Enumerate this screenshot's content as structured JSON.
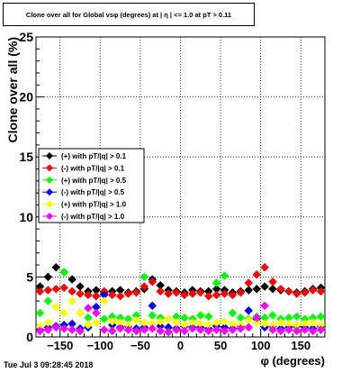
{
  "title": "Clone  over all for Global vsφ (degrees) at | η | <= 1.0 at pT > 0.11",
  "footer": "Tue Jul  3 09:28:45 2018",
  "chart_data": {
    "type": "scatter",
    "title": "Clone  over all for Global vsφ (degrees) at | η | <= 1.0 at pT > 0.11",
    "xlabel": "φ (degrees)",
    "ylabel": "Clone  over all (%)",
    "xlim": [
      -180,
      180
    ],
    "ylim": [
      0,
      25
    ],
    "xticks": [
      -150,
      -100,
      -50,
      0,
      50,
      100,
      150
    ],
    "yticks": [
      0,
      5,
      10,
      15,
      20,
      25
    ],
    "grid": true,
    "legend_position": "middle-left",
    "x": [
      -175,
      -165,
      -155,
      -145,
      -135,
      -125,
      -115,
      -105,
      -95,
      -85,
      -75,
      -65,
      -55,
      -45,
      -35,
      -25,
      -15,
      -5,
      5,
      15,
      25,
      35,
      45,
      55,
      65,
      75,
      85,
      95,
      105,
      115,
      125,
      135,
      145,
      155,
      165,
      175
    ],
    "series": [
      {
        "name": "(+) with pT/|q| > 0.1",
        "color": "#000000",
        "values": [
          4.2,
          5.0,
          5.8,
          5.4,
          4.8,
          4.2,
          3.8,
          3.9,
          3.7,
          3.8,
          3.9,
          3.7,
          3.8,
          4.0,
          4.8,
          4.3,
          3.9,
          3.8,
          3.7,
          3.9,
          3.8,
          3.8,
          4.0,
          3.9,
          3.7,
          3.8,
          3.9,
          4.0,
          4.2,
          4.0,
          3.9,
          3.8,
          3.7,
          3.8,
          4.0,
          4.1
        ]
      },
      {
        "name": "(-) with pT/|q| > 0.1",
        "color": "#ff0000",
        "values": [
          3.8,
          3.9,
          4.0,
          4.1,
          3.8,
          3.6,
          3.5,
          3.4,
          3.8,
          3.5,
          3.4,
          3.6,
          3.7,
          4.2,
          4.6,
          3.8,
          3.6,
          3.7,
          3.5,
          3.6,
          3.7,
          3.4,
          3.5,
          3.6,
          3.5,
          3.7,
          4.5,
          5.2,
          5.8,
          4.6,
          4.0,
          3.8,
          3.6,
          3.7,
          3.9,
          3.8
        ]
      },
      {
        "name": "(+) with pT/|q| > 0.5",
        "color": "#00ff00",
        "values": [
          2.0,
          3.0,
          2.5,
          5.4,
          3.0,
          2.0,
          1.6,
          2.0,
          1.5,
          1.7,
          1.6,
          1.5,
          1.8,
          5.0,
          1.8,
          1.6,
          1.5,
          1.7,
          1.6,
          1.5,
          1.8,
          1.7,
          4.5,
          5.1,
          2.0,
          1.6,
          1.5,
          1.7,
          1.6,
          1.8,
          1.5,
          1.6,
          1.7,
          1.5,
          1.6,
          1.7
        ]
      },
      {
        "name": "(-) with pT/|q| > 0.5",
        "color": "#0000ff",
        "values": [
          0.6,
          0.8,
          0.9,
          1.0,
          1.1,
          0.7,
          0.8,
          2.5,
          3.5,
          1.0,
          0.8,
          0.9,
          0.7,
          0.8,
          2.6,
          0.9,
          0.8,
          0.7,
          0.9,
          0.8,
          0.8,
          0.7,
          0.9,
          0.8,
          0.7,
          0.9,
          2.2,
          1.5,
          0.8,
          0.9,
          0.7,
          0.8,
          0.9,
          0.8,
          0.7,
          0.9
        ]
      },
      {
        "name": "(+) with pT/|q| > 1.0",
        "color": "#ffff00",
        "values": [
          0.9,
          1.2,
          2.5,
          2.0,
          3.0,
          2.0,
          1.0,
          1.2,
          3.0,
          1.3,
          1.2,
          1.0,
          1.4,
          1.2,
          1.1,
          1.3,
          1.5,
          1.2,
          1.0,
          1.2,
          1.1,
          1.0,
          1.2,
          1.3,
          1.1,
          1.0,
          1.4,
          1.2,
          1.1,
          1.0,
          1.2,
          1.1,
          1.0,
          1.1,
          1.2,
          1.0
        ]
      },
      {
        "name": "(-) with pT/|q| > 1.0",
        "color": "#ff00ff",
        "values": [
          0.5,
          0.6,
          0.8,
          0.7,
          0.6,
          0.5,
          2.4,
          2.0,
          0.6,
          0.5,
          0.7,
          0.6,
          0.5,
          0.6,
          0.7,
          0.5,
          0.4,
          0.6,
          0.5,
          0.7,
          0.6,
          0.5,
          0.6,
          0.5,
          0.6,
          0.7,
          0.8,
          1.6,
          2.6,
          0.6,
          0.5,
          0.6,
          0.5,
          0.6,
          0.5,
          0.6
        ]
      }
    ]
  }
}
